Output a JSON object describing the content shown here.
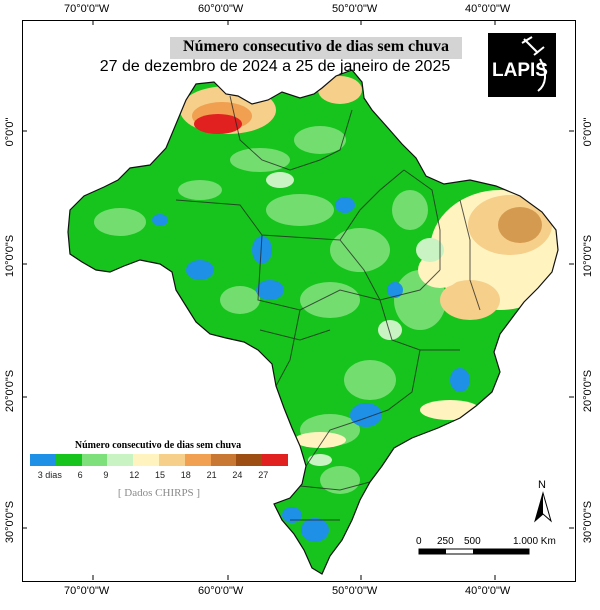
{
  "map": {
    "title": "Número consecutivo de dias sem chuva",
    "subtitle": "27 de dezembro de 2024 a 25 de janeiro de 2025",
    "logo_text": "LAPIS"
  },
  "longitude_labels": [
    "70°0'0\"W",
    "60°0'0\"W",
    "50°0'0\"W",
    "40°0'0\"W"
  ],
  "latitude_labels": [
    "0°0'0\"",
    "10°0'0\"S",
    "20°0'0\"S",
    "30°0'0\"S"
  ],
  "legend": {
    "title": "Número consecutivo de dias sem chuva",
    "ticks": [
      "3  dias",
      "6",
      "9",
      "12",
      "15",
      "18",
      "21",
      "24",
      "27"
    ],
    "colors": [
      "#1e90e6",
      "#17c41d",
      "#7ee07a",
      "#c9f3c2",
      "#fff3c0",
      "#f6cf8a",
      "#f0a050",
      "#c87833",
      "#9d4e13",
      "#e12020"
    ],
    "source": "[ Dados CHIRPS ]"
  },
  "scale": {
    "labels": [
      "0",
      "250",
      "500",
      "1.000 Km"
    ]
  },
  "north_label": "N",
  "palette": {
    "green": "#17c41d",
    "light_green": "#7ee07a",
    "blue": "#1e90e6",
    "pale_yellow": "#fff3c0",
    "orange": "#f0a050",
    "red": "#e12020",
    "frame": "#000000"
  }
}
